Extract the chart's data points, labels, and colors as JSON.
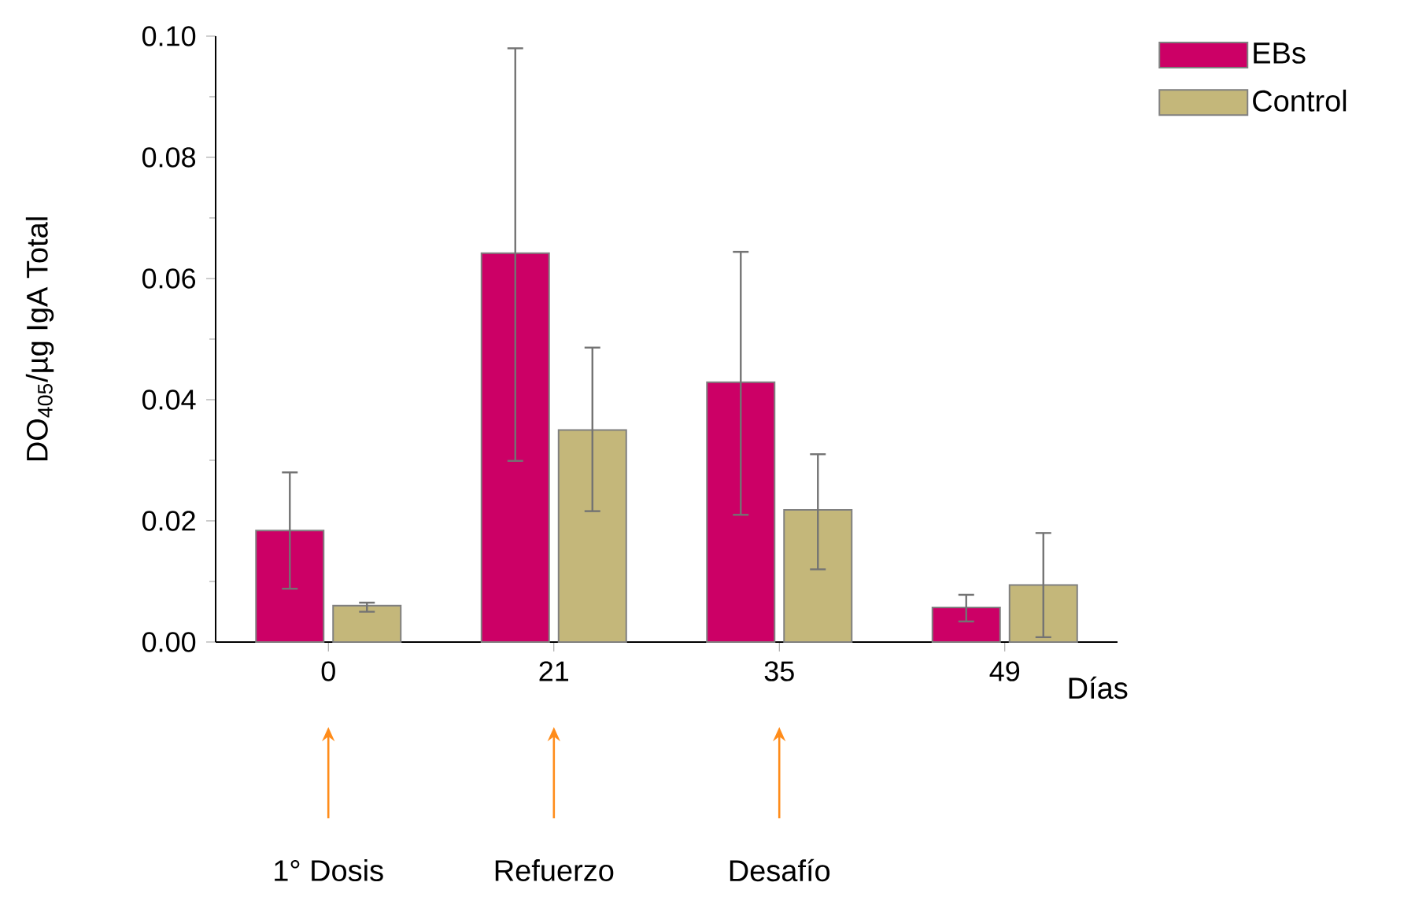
{
  "chart_data": {
    "type": "bar",
    "ylabel": "DO$_{405}$/µg IgA Total",
    "xlabel": "Días",
    "categories": [
      "0",
      "21",
      "35",
      "49"
    ],
    "series": [
      {
        "name": "EBs",
        "color": "#cc0066",
        "values": [
          0.0184,
          0.0642,
          0.0429,
          0.0057
        ],
        "errors": [
          [
            0.0088,
            0.028
          ],
          [
            0.0299,
            0.098
          ],
          [
            0.021,
            0.0644
          ],
          [
            0.0034,
            0.0078
          ]
        ]
      },
      {
        "name": "Control",
        "color": "#c4b77a",
        "values": [
          0.006,
          0.035,
          0.0218,
          0.0094
        ],
        "errors": [
          [
            0.005,
            0.0065
          ],
          [
            0.0216,
            0.0486
          ],
          [
            0.012,
            0.031
          ],
          [
            0.0008,
            0.018
          ]
        ]
      }
    ],
    "ylim": [
      0,
      0.1
    ],
    "yticks": [
      {
        "value": 0,
        "label": "0.00"
      },
      0.02,
      0.04,
      0.06,
      0.08,
      {
        "value": 0.1,
        "label": "0.10"
      }
    ],
    "legend": "top right",
    "grid": false,
    "annotations": [
      "1° Dosis",
      "Refuerzo",
      "Desafío"
    ]
  }
}
